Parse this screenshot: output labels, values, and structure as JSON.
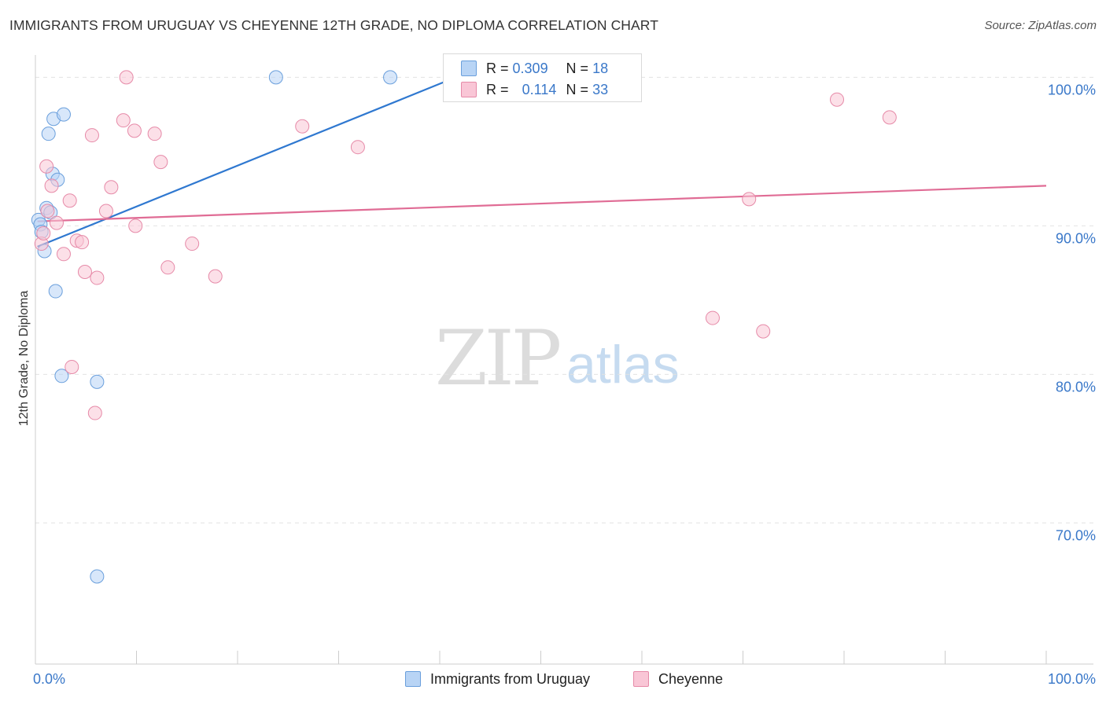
{
  "header": {
    "title": "IMMIGRANTS FROM URUGUAY VS CHEYENNE 12TH GRADE, NO DIPLOMA CORRELATION CHART",
    "source": "Source: ZipAtlas.com"
  },
  "watermark": {
    "zip": "ZIP",
    "atlas": "atlas"
  },
  "legend": {
    "rows": [
      {
        "r_label": "R =",
        "r_value": "0.309",
        "n_label": "N =",
        "n_value": "18"
      },
      {
        "r_label": "R =",
        "r_value": "0.114",
        "n_label": "N =",
        "n_value": "33"
      }
    ]
  },
  "bottom_legend": {
    "items": [
      {
        "label": "Immigrants from Uruguay"
      },
      {
        "label": "Cheyenne"
      }
    ]
  },
  "colors": {
    "blue_fill": "#b8d4f5",
    "blue_stroke": "#6a9fdc",
    "blue_line": "#2f78d0",
    "pink_fill": "#f9c6d6",
    "pink_stroke": "#e68aa8",
    "pink_line": "#e06c95",
    "tick_label": "#3a78c9",
    "grid": "#e2e2e2"
  },
  "chart_data": {
    "type": "scatter",
    "title": "IMMIGRANTS FROM URUGUAY VS CHEYENNE 12TH GRADE, NO DIPLOMA CORRELATION CHART",
    "xlabel": "",
    "ylabel": "12th Grade, No Diploma",
    "xlim": [
      0,
      100
    ],
    "ylim": [
      60.5,
      101.5
    ],
    "x_tick_labels": [
      "0.0%",
      "100.0%"
    ],
    "y_ticks": [
      70,
      80,
      90,
      100
    ],
    "y_tick_labels": [
      "70.0%",
      "80.0%",
      "90.0%",
      "100.0%"
    ],
    "grid": true,
    "legend_position": "top-center",
    "series": [
      {
        "name": "Immigrants from Uruguay",
        "color": "#b8d4f5",
        "points": [
          [
            0.3,
            90.4
          ],
          [
            0.5,
            90.1
          ],
          [
            0.6,
            89.6
          ],
          [
            0.9,
            88.3
          ],
          [
            1.1,
            91.2
          ],
          [
            1.3,
            96.2
          ],
          [
            1.5,
            90.9
          ],
          [
            1.7,
            93.5
          ],
          [
            1.8,
            97.2
          ],
          [
            2.0,
            85.6
          ],
          [
            2.2,
            93.1
          ],
          [
            2.6,
            79.9
          ],
          [
            2.8,
            97.5
          ],
          [
            6.1,
            79.5
          ],
          [
            6.1,
            66.4
          ],
          [
            23.8,
            100.0
          ],
          [
            35.1,
            100.0
          ],
          [
            41.5,
            99.1
          ]
        ],
        "trend": {
          "x": [
            0.2,
            40.5
          ],
          "y": [
            88.6,
            99.7
          ]
        }
      },
      {
        "name": "Cheyenne",
        "color": "#f9c6d6",
        "points": [
          [
            0.6,
            88.8
          ],
          [
            0.8,
            89.5
          ],
          [
            1.1,
            94.0
          ],
          [
            1.6,
            92.7
          ],
          [
            2.1,
            90.2
          ],
          [
            2.8,
            88.1
          ],
          [
            3.4,
            91.7
          ],
          [
            3.6,
            80.5
          ],
          [
            4.1,
            89.0
          ],
          [
            4.6,
            88.9
          ],
          [
            4.9,
            86.9
          ],
          [
            5.6,
            96.1
          ],
          [
            5.9,
            77.4
          ],
          [
            6.1,
            86.5
          ],
          [
            7.0,
            91.0
          ],
          [
            7.5,
            92.6
          ],
          [
            8.7,
            97.1
          ],
          [
            9.0,
            100.0
          ],
          [
            9.8,
            96.4
          ],
          [
            9.9,
            90.0
          ],
          [
            11.8,
            96.2
          ],
          [
            12.4,
            94.3
          ],
          [
            13.1,
            87.2
          ],
          [
            15.5,
            88.8
          ],
          [
            17.8,
            86.6
          ],
          [
            26.4,
            96.7
          ],
          [
            31.9,
            95.3
          ],
          [
            67.0,
            83.8
          ],
          [
            70.6,
            91.8
          ],
          [
            72.0,
            82.9
          ],
          [
            79.3,
            98.5
          ],
          [
            84.5,
            97.3
          ],
          [
            1.2,
            91.0
          ]
        ],
        "trend": {
          "x": [
            0.2,
            100.0
          ],
          "y": [
            90.3,
            92.7
          ]
        }
      }
    ]
  }
}
